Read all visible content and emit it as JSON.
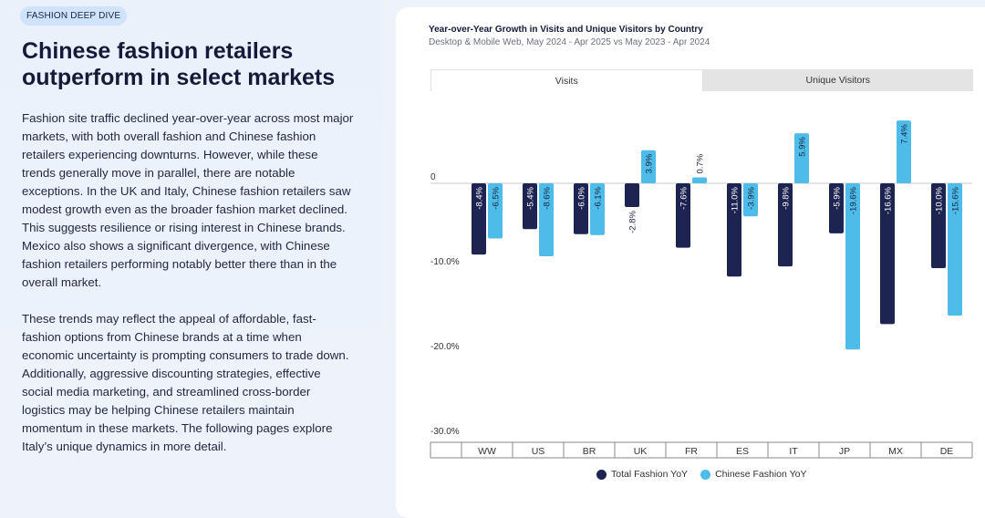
{
  "left": {
    "tag": "FASHION DEEP DIVE",
    "title": "Chinese fashion retailers outperform in select markets",
    "paragraph1": "Fashion site traffic declined year-over-year across most major markets, with both overall fashion and Chinese fashion retailers experiencing downturns. However, while these trends generally move in parallel, there are notable exceptions. In the UK and Italy, Chinese fashion retailers saw modest growth even as the broader fashion market declined. This suggests resilience or rising interest in Chinese brands. Mexico also shows a significant divergence, with Chinese fashion retailers performing notably better there than in the overall market.",
    "paragraph2": "These trends may reflect the appeal of affordable, fast-fashion options from Chinese brands at a time when economic uncertainty is prompting consumers to trade down. Additionally, aggressive discounting strategies, effective social media marketing, and streamlined cross-border logistics may be helping Chinese retailers maintain momentum in these markets. The following pages explore Italy’s unique dynamics in more detail."
  },
  "tabs": {
    "visits": "Visits",
    "unique": "Unique Visitors"
  },
  "colors": {
    "total": "#1d2452",
    "chinese": "#4dbce9"
  },
  "chart_data": {
    "type": "bar",
    "title": "Year-over-Year Growth in Visits and Unique Visitors by Country",
    "subtitle": "Desktop & Mobile Web, May 2024 - Apr 2025 vs May 2023 - Apr 2024",
    "categories": [
      "WW",
      "US",
      "BR",
      "UK",
      "FR",
      "ES",
      "IT",
      "JP",
      "MX",
      "DE"
    ],
    "series": [
      {
        "name": "Total Fashion YoY",
        "values": [
          -8.4,
          -5.4,
          -6.0,
          -2.8,
          -7.6,
          -11.0,
          -9.8,
          -5.9,
          -16.6,
          -10.0
        ]
      },
      {
        "name": "Chinese Fashion YoY",
        "values": [
          -6.5,
          -8.6,
          -6.1,
          3.9,
          0.7,
          -3.9,
          5.9,
          -19.6,
          7.4,
          -15.6
        ]
      }
    ],
    "ylim": [
      -30,
      8
    ],
    "yticks": [
      0,
      -10,
      -20,
      -30
    ],
    "ytick_labels": [
      "0",
      "-10.0%",
      "-20.0%",
      "-30.0%"
    ],
    "value_labels": [
      [
        "-8.4%",
        "-5.4%",
        "-6.0%",
        "-2.8%",
        "-7.6%",
        "-11.0%",
        "-9.8%",
        "-5.9%",
        "-16.6%",
        "-10.0%"
      ],
      [
        "-6.5%",
        "-8.6%",
        "-6.1%",
        "3.9%",
        "0.7%",
        "-3.9%",
        "5.9%",
        "-19.6%",
        "7.4%",
        "-15.6%"
      ]
    ]
  }
}
